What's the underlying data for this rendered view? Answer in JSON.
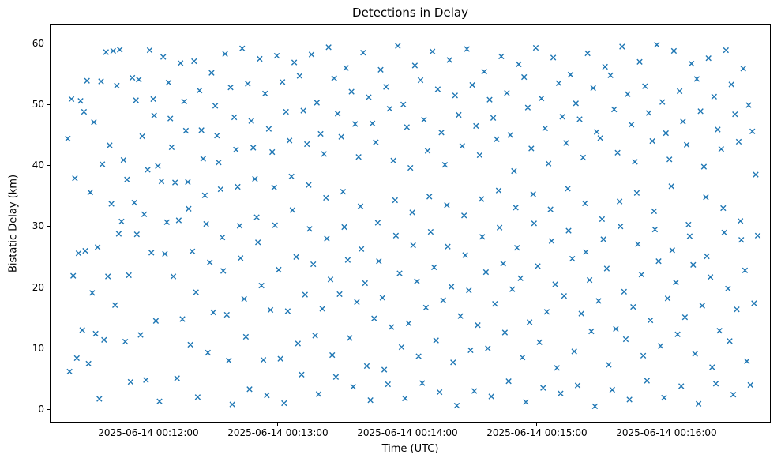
{
  "window": {
    "title": "Detections in Delay"
  },
  "chart_data": {
    "type": "scatter",
    "title": "Detections in Delay",
    "xlabel": "Time (UTC)",
    "ylabel": "Bistatic Delay (km)",
    "marker": "x",
    "marker_color": "#1f77b4",
    "grid": false,
    "legend": null,
    "x_encoding": "seconds after 2025-06-14 00:11:00 UTC",
    "xlim": [
      14.3,
      348.3
    ],
    "ylim": [
      -2.2,
      63.1
    ],
    "x_ticks": [
      {
        "value": 60,
        "label": "2025-06-14 00:12:00"
      },
      {
        "value": 120,
        "label": "2025-06-14 00:13:00"
      },
      {
        "value": 180,
        "label": "2025-06-14 00:14:00"
      },
      {
        "value": 240,
        "label": "2025-06-14 00:15:00"
      },
      {
        "value": 300,
        "label": "2025-06-14 00:16:00"
      }
    ],
    "y_ticks": [
      0,
      10,
      20,
      30,
      40,
      50,
      60
    ],
    "points": [
      [
        22.3,
        44.5
      ],
      [
        23.1,
        6.3
      ],
      [
        24.0,
        51.0
      ],
      [
        24.8,
        22.0
      ],
      [
        25.6,
        38.0
      ],
      [
        26.5,
        8.5
      ],
      [
        27.3,
        25.7
      ],
      [
        28.2,
        50.7
      ],
      [
        29.0,
        13.1
      ],
      [
        29.8,
        48.9
      ],
      [
        30.4,
        26.1
      ],
      [
        31.2,
        54.0
      ],
      [
        31.9,
        7.6
      ],
      [
        32.7,
        35.7
      ],
      [
        33.6,
        19.2
      ],
      [
        34.4,
        47.2
      ],
      [
        35.2,
        12.5
      ],
      [
        36.1,
        26.7
      ],
      [
        36.9,
        1.8
      ],
      [
        37.7,
        53.9
      ],
      [
        38.3,
        40.3
      ],
      [
        39.1,
        11.5
      ],
      [
        40.0,
        58.7
      ],
      [
        40.9,
        21.9
      ],
      [
        41.7,
        43.4
      ],
      [
        42.5,
        33.8
      ],
      [
        43.3,
        58.9
      ],
      [
        44.2,
        17.2
      ],
      [
        45.0,
        53.2
      ],
      [
        45.9,
        28.9
      ],
      [
        46.4,
        59.1
      ],
      [
        47.2,
        30.9
      ],
      [
        48.1,
        41.0
      ],
      [
        48.9,
        11.2
      ],
      [
        49.7,
        37.8
      ],
      [
        50.6,
        22.1
      ],
      [
        51.4,
        4.6
      ],
      [
        52.2,
        54.5
      ],
      [
        53.1,
        34.0
      ],
      [
        53.9,
        50.8
      ],
      [
        54.3,
        28.8
      ],
      [
        55.2,
        54.2
      ],
      [
        56.0,
        12.3
      ],
      [
        56.8,
        44.9
      ],
      [
        57.7,
        32.1
      ],
      [
        58.5,
        4.9
      ],
      [
        59.3,
        39.4
      ],
      [
        60.2,
        59.0
      ],
      [
        61.0,
        25.8
      ],
      [
        61.9,
        51.0
      ],
      [
        62.3,
        48.3
      ],
      [
        63.1,
        14.6
      ],
      [
        64.0,
        40.0
      ],
      [
        64.8,
        1.4
      ],
      [
        65.7,
        37.5
      ],
      [
        66.5,
        57.9
      ],
      [
        67.3,
        25.6
      ],
      [
        68.2,
        30.8
      ],
      [
        69.0,
        53.7
      ],
      [
        69.8,
        47.8
      ],
      [
        70.4,
        43.1
      ],
      [
        71.2,
        21.9
      ],
      [
        72.0,
        37.3
      ],
      [
        72.9,
        5.2
      ],
      [
        73.7,
        31.1
      ],
      [
        74.5,
        56.9
      ],
      [
        75.4,
        14.9
      ],
      [
        76.2,
        50.6
      ],
      [
        77.0,
        45.8
      ],
      [
        77.9,
        37.4
      ],
      [
        78.3,
        33.0
      ],
      [
        79.1,
        10.7
      ],
      [
        80.0,
        26.0
      ],
      [
        80.8,
        57.2
      ],
      [
        81.7,
        19.3
      ],
      [
        82.5,
        2.1
      ],
      [
        83.3,
        52.4
      ],
      [
        84.2,
        45.9
      ],
      [
        85.0,
        41.2
      ],
      [
        85.8,
        35.2
      ],
      [
        86.4,
        30.5
      ],
      [
        87.2,
        9.4
      ],
      [
        88.1,
        24.2
      ],
      [
        88.9,
        55.3
      ],
      [
        89.7,
        16.0
      ],
      [
        90.6,
        49.9
      ],
      [
        91.4,
        45.0
      ],
      [
        92.2,
        40.6
      ],
      [
        93.1,
        36.2
      ],
      [
        93.9,
        28.3
      ],
      [
        94.3,
        22.8
      ],
      [
        95.2,
        58.4
      ],
      [
        96.0,
        15.6
      ],
      [
        96.9,
        8.1
      ],
      [
        97.7,
        52.9
      ],
      [
        98.5,
        0.9
      ],
      [
        99.4,
        48.0
      ],
      [
        100.2,
        42.7
      ],
      [
        101.0,
        36.6
      ],
      [
        101.9,
        30.2
      ],
      [
        102.3,
        24.9
      ],
      [
        103.1,
        59.3
      ],
      [
        104.0,
        18.2
      ],
      [
        104.8,
        12.0
      ],
      [
        105.7,
        53.5
      ],
      [
        106.5,
        3.4
      ],
      [
        107.3,
        47.4
      ],
      [
        108.2,
        43.0
      ],
      [
        109.0,
        37.9
      ],
      [
        109.8,
        31.6
      ],
      [
        110.4,
        27.5
      ],
      [
        111.2,
        57.6
      ],
      [
        112.0,
        20.4
      ],
      [
        112.9,
        8.2
      ],
      [
        113.7,
        51.9
      ],
      [
        114.5,
        2.4
      ],
      [
        115.4,
        46.1
      ],
      [
        116.2,
        16.4
      ],
      [
        117.0,
        42.3
      ],
      [
        117.9,
        36.5
      ],
      [
        118.3,
        30.3
      ],
      [
        119.1,
        58.1
      ],
      [
        120.0,
        23.0
      ],
      [
        120.8,
        8.4
      ],
      [
        121.7,
        53.8
      ],
      [
        122.5,
        1.1
      ],
      [
        123.4,
        48.9
      ],
      [
        124.2,
        16.2
      ],
      [
        125.0,
        44.2
      ],
      [
        125.9,
        38.3
      ],
      [
        126.4,
        32.8
      ],
      [
        127.2,
        57.0
      ],
      [
        128.1,
        25.1
      ],
      [
        128.9,
        10.9
      ],
      [
        129.7,
        54.8
      ],
      [
        130.6,
        5.8
      ],
      [
        131.4,
        49.1
      ],
      [
        132.2,
        18.9
      ],
      [
        133.1,
        43.6
      ],
      [
        133.9,
        36.9
      ],
      [
        134.3,
        29.7
      ],
      [
        135.2,
        58.3
      ],
      [
        136.0,
        23.9
      ],
      [
        136.9,
        12.2
      ],
      [
        137.7,
        50.4
      ],
      [
        138.5,
        2.6
      ],
      [
        139.4,
        45.3
      ],
      [
        140.2,
        16.6
      ],
      [
        141.0,
        42.0
      ],
      [
        141.9,
        34.8
      ],
      [
        142.3,
        28.1
      ],
      [
        143.1,
        59.5
      ],
      [
        144.0,
        21.4
      ],
      [
        144.8,
        9.0
      ],
      [
        145.7,
        54.4
      ],
      [
        146.5,
        5.4
      ],
      [
        147.3,
        48.6
      ],
      [
        148.2,
        19.0
      ],
      [
        149.0,
        44.8
      ],
      [
        149.8,
        35.8
      ],
      [
        150.4,
        30.0
      ],
      [
        151.2,
        56.1
      ],
      [
        152.0,
        24.6
      ],
      [
        152.9,
        11.8
      ],
      [
        153.7,
        52.2
      ],
      [
        154.5,
        3.8
      ],
      [
        155.4,
        46.9
      ],
      [
        156.2,
        17.7
      ],
      [
        157.0,
        41.5
      ],
      [
        157.9,
        33.4
      ],
      [
        158.3,
        26.4
      ],
      [
        159.1,
        58.6
      ],
      [
        160.0,
        20.8
      ],
      [
        160.8,
        7.2
      ],
      [
        161.7,
        51.3
      ],
      [
        162.5,
        1.6
      ],
      [
        163.4,
        47.0
      ],
      [
        164.2,
        15.0
      ],
      [
        165.0,
        43.9
      ],
      [
        165.9,
        30.7
      ],
      [
        166.4,
        24.4
      ],
      [
        167.2,
        55.8
      ],
      [
        168.1,
        18.4
      ],
      [
        168.9,
        6.6
      ],
      [
        169.7,
        53.0
      ],
      [
        170.6,
        4.2
      ],
      [
        171.4,
        49.4
      ],
      [
        172.2,
        13.6
      ],
      [
        173.1,
        40.9
      ],
      [
        173.9,
        34.4
      ],
      [
        174.3,
        28.6
      ],
      [
        175.2,
        59.7
      ],
      [
        176.0,
        22.4
      ],
      [
        176.9,
        10.3
      ],
      [
        177.7,
        50.1
      ],
      [
        178.5,
        1.9
      ],
      [
        179.4,
        46.4
      ],
      [
        180.2,
        14.2
      ],
      [
        181.0,
        39.7
      ],
      [
        181.9,
        32.4
      ],
      [
        182.3,
        27.0
      ],
      [
        183.1,
        56.5
      ],
      [
        184.0,
        21.1
      ],
      [
        184.8,
        8.8
      ],
      [
        185.7,
        54.1
      ],
      [
        186.5,
        4.4
      ],
      [
        187.3,
        47.6
      ],
      [
        188.2,
        16.8
      ],
      [
        189.0,
        42.5
      ],
      [
        189.8,
        35.0
      ],
      [
        190.4,
        29.2
      ],
      [
        191.2,
        58.8
      ],
      [
        192.0,
        23.4
      ],
      [
        192.9,
        11.4
      ],
      [
        193.7,
        52.6
      ],
      [
        194.5,
        2.9
      ],
      [
        195.4,
        45.5
      ],
      [
        196.2,
        18.0
      ],
      [
        197.0,
        40.2
      ],
      [
        197.9,
        33.6
      ],
      [
        198.3,
        26.8
      ],
      [
        199.1,
        57.4
      ],
      [
        200.0,
        20.2
      ],
      [
        200.8,
        7.8
      ],
      [
        201.7,
        51.6
      ],
      [
        202.5,
        0.7
      ],
      [
        203.4,
        48.4
      ],
      [
        204.2,
        15.4
      ],
      [
        205.0,
        43.3
      ],
      [
        205.9,
        31.9
      ],
      [
        206.4,
        25.4
      ],
      [
        207.2,
        59.2
      ],
      [
        208.1,
        19.6
      ],
      [
        208.9,
        9.8
      ],
      [
        209.7,
        53.3
      ],
      [
        210.6,
        3.1
      ],
      [
        211.4,
        46.6
      ],
      [
        212.2,
        13.9
      ],
      [
        213.1,
        41.8
      ],
      [
        213.9,
        34.6
      ],
      [
        214.3,
        28.4
      ],
      [
        215.2,
        55.5
      ],
      [
        216.0,
        22.6
      ],
      [
        216.9,
        10.1
      ],
      [
        217.7,
        50.9
      ],
      [
        218.5,
        2.2
      ],
      [
        219.4,
        47.9
      ],
      [
        220.2,
        17.4
      ],
      [
        221.0,
        44.4
      ],
      [
        221.9,
        36.0
      ],
      [
        222.3,
        29.9
      ],
      [
        223.1,
        58.0
      ],
      [
        224.0,
        24.0
      ],
      [
        224.8,
        12.7
      ],
      [
        225.7,
        52.0
      ],
      [
        226.5,
        4.7
      ],
      [
        227.3,
        45.1
      ],
      [
        228.2,
        19.8
      ],
      [
        229.0,
        39.2
      ],
      [
        229.8,
        33.2
      ],
      [
        230.4,
        26.6
      ],
      [
        231.2,
        56.7
      ],
      [
        232.0,
        21.6
      ],
      [
        232.9,
        8.6
      ],
      [
        233.7,
        54.6
      ],
      [
        234.5,
        1.3
      ],
      [
        235.4,
        49.6
      ],
      [
        236.2,
        14.4
      ],
      [
        237.0,
        42.9
      ],
      [
        237.9,
        35.4
      ],
      [
        238.3,
        30.6
      ],
      [
        239.1,
        59.4
      ],
      [
        240.0,
        23.6
      ],
      [
        240.8,
        11.1
      ],
      [
        241.7,
        51.1
      ],
      [
        242.5,
        3.6
      ],
      [
        243.4,
        46.2
      ],
      [
        244.2,
        16.1
      ],
      [
        245.0,
        40.4
      ],
      [
        245.9,
        32.9
      ],
      [
        246.4,
        27.7
      ],
      [
        247.2,
        57.8
      ],
      [
        248.1,
        20.6
      ],
      [
        248.9,
        6.9
      ],
      [
        249.7,
        53.6
      ],
      [
        250.6,
        2.7
      ],
      [
        251.4,
        48.1
      ],
      [
        252.2,
        18.7
      ],
      [
        253.1,
        43.8
      ],
      [
        253.9,
        36.3
      ],
      [
        254.3,
        29.4
      ],
      [
        255.2,
        55.0
      ],
      [
        256.0,
        24.8
      ],
      [
        256.9,
        9.6
      ],
      [
        257.7,
        50.3
      ],
      [
        258.5,
        4.0
      ],
      [
        259.4,
        47.7
      ],
      [
        260.2,
        15.8
      ],
      [
        261.0,
        41.4
      ],
      [
        261.9,
        33.9
      ],
      [
        262.3,
        25.9
      ],
      [
        263.1,
        58.5
      ],
      [
        264.0,
        21.3
      ],
      [
        264.8,
        12.9
      ],
      [
        265.7,
        52.8
      ],
      [
        266.5,
        0.6
      ],
      [
        267.3,
        45.6
      ],
      [
        268.2,
        17.9
      ],
      [
        269.0,
        44.6
      ],
      [
        269.8,
        31.3
      ],
      [
        270.4,
        28.0
      ],
      [
        271.2,
        56.3
      ],
      [
        272.0,
        23.2
      ],
      [
        272.9,
        7.4
      ],
      [
        273.7,
        54.9
      ],
      [
        274.5,
        3.3
      ],
      [
        275.4,
        49.3
      ],
      [
        276.2,
        13.3
      ],
      [
        277.0,
        42.2
      ],
      [
        277.9,
        34.2
      ],
      [
        278.3,
        30.1
      ],
      [
        279.1,
        59.6
      ],
      [
        280.0,
        19.4
      ],
      [
        280.8,
        11.6
      ],
      [
        281.7,
        51.8
      ],
      [
        282.5,
        1.7
      ],
      [
        283.4,
        46.8
      ],
      [
        284.2,
        16.9
      ],
      [
        285.0,
        40.7
      ],
      [
        285.9,
        35.6
      ],
      [
        286.4,
        27.2
      ],
      [
        287.2,
        57.1
      ],
      [
        288.1,
        22.2
      ],
      [
        288.9,
        8.9
      ],
      [
        289.7,
        53.1
      ],
      [
        290.6,
        4.8
      ],
      [
        291.4,
        48.7
      ],
      [
        292.2,
        14.7
      ],
      [
        293.1,
        44.1
      ],
      [
        293.9,
        32.6
      ],
      [
        294.3,
        29.6
      ],
      [
        295.2,
        59.9
      ],
      [
        296.0,
        24.4
      ],
      [
        296.9,
        10.5
      ],
      [
        297.7,
        50.5
      ],
      [
        298.5,
        2.0
      ],
      [
        299.4,
        45.4
      ],
      [
        300.2,
        18.3
      ],
      [
        301.0,
        41.1
      ],
      [
        301.9,
        36.7
      ],
      [
        302.3,
        26.2
      ],
      [
        303.1,
        58.9
      ],
      [
        304.0,
        20.9
      ],
      [
        304.8,
        12.4
      ],
      [
        305.7,
        52.3
      ],
      [
        306.5,
        3.9
      ],
      [
        307.3,
        47.3
      ],
      [
        308.2,
        15.2
      ],
      [
        309.0,
        43.5
      ],
      [
        309.8,
        30.4
      ],
      [
        310.4,
        28.5
      ],
      [
        311.2,
        56.8
      ],
      [
        312.0,
        23.8
      ],
      [
        312.9,
        9.2
      ],
      [
        313.7,
        54.3
      ],
      [
        314.5,
        1.0
      ],
      [
        315.4,
        49.0
      ],
      [
        316.2,
        17.1
      ],
      [
        317.0,
        39.9
      ],
      [
        317.9,
        34.9
      ],
      [
        318.3,
        25.2
      ],
      [
        319.1,
        57.7
      ],
      [
        320.0,
        21.8
      ],
      [
        320.8,
        7.0
      ],
      [
        321.7,
        51.4
      ],
      [
        322.5,
        4.3
      ],
      [
        323.4,
        46.0
      ],
      [
        324.2,
        13.0
      ],
      [
        325.0,
        42.8
      ],
      [
        325.9,
        33.1
      ],
      [
        326.4,
        29.1
      ],
      [
        327.2,
        59.0
      ],
      [
        328.1,
        19.9
      ],
      [
        328.9,
        11.3
      ],
      [
        329.7,
        53.4
      ],
      [
        330.6,
        2.5
      ],
      [
        331.4,
        48.5
      ],
      [
        332.2,
        16.5
      ],
      [
        333.1,
        44.0
      ],
      [
        333.9,
        31.0
      ],
      [
        334.3,
        27.9
      ],
      [
        335.2,
        56.0
      ],
      [
        336.0,
        22.9
      ],
      [
        336.9,
        8.0
      ],
      [
        337.7,
        50.0
      ],
      [
        338.5,
        4.1
      ],
      [
        339.4,
        45.7
      ],
      [
        340.2,
        17.5
      ],
      [
        341.0,
        38.6
      ],
      [
        341.9,
        28.6
      ]
    ]
  }
}
